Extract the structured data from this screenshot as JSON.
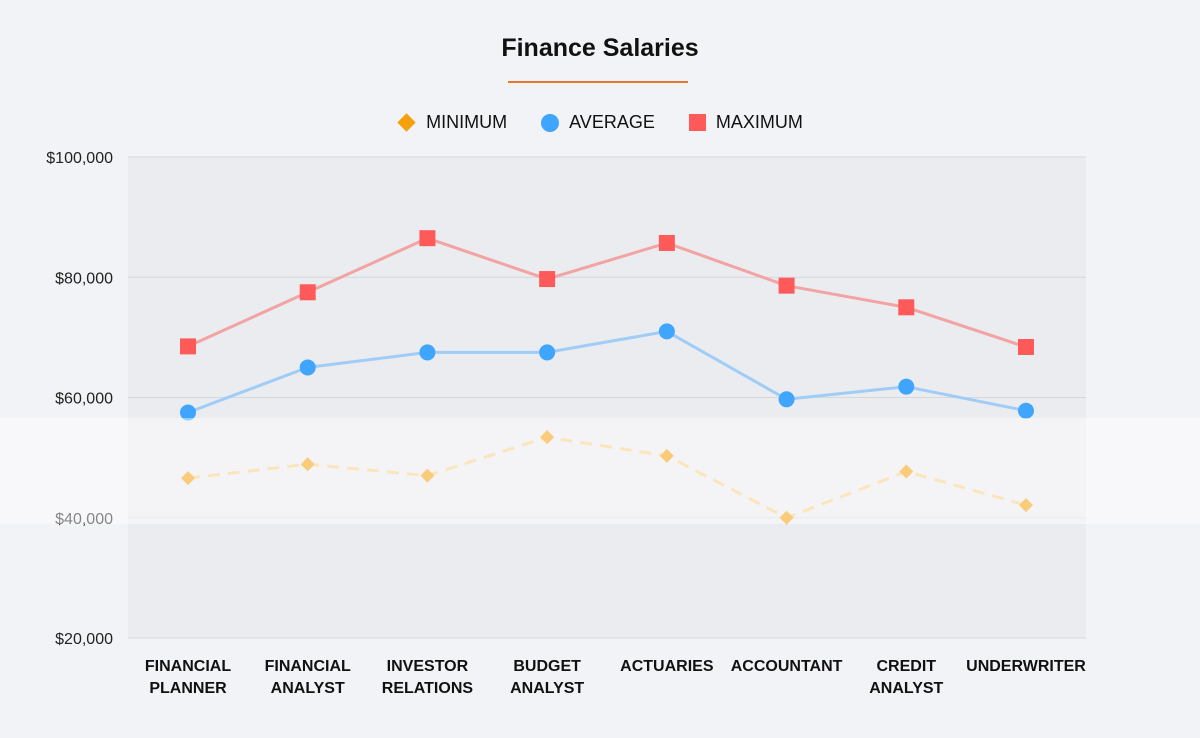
{
  "chart_data": {
    "type": "line",
    "title": "Finance Salaries",
    "xlabel": "",
    "ylabel": "",
    "categories": [
      [
        "FINANCIAL",
        "PLANNER"
      ],
      [
        "FINANCIAL",
        "ANALYST"
      ],
      [
        "INVESTOR",
        "RELATIONS"
      ],
      [
        "BUDGET",
        "ANALYST"
      ],
      [
        "ACTUARIES"
      ],
      [
        "ACCOUNTANT"
      ],
      [
        "CREDIT",
        "ANALYST"
      ],
      [
        "UNDERWRITER"
      ]
    ],
    "ylim": [
      20000,
      100000
    ],
    "yticks": [
      {
        "value": 20000,
        "label": "$20,000"
      },
      {
        "value": 40000,
        "label": "$40,000"
      },
      {
        "value": 60000,
        "label": "$60,000"
      },
      {
        "value": 80000,
        "label": "$80,000"
      },
      {
        "value": 100000,
        "label": "$100,000"
      }
    ],
    "grid": true,
    "legend_position": "top-center",
    "series": [
      {
        "name": "MINIMUM",
        "marker": "diamond",
        "line": "dashed",
        "color": "#f5a00e",
        "line_color": "#f7cf86",
        "values": [
          46600,
          48900,
          47000,
          53400,
          50300,
          40000,
          47700,
          42100
        ]
      },
      {
        "name": "AVERAGE",
        "marker": "circle",
        "line": "solid",
        "color": "#3fa5ff",
        "line_color": "#9fcdf7",
        "values": [
          57500,
          65000,
          67500,
          67500,
          71000,
          59700,
          61800,
          57800
        ]
      },
      {
        "name": "MAXIMUM",
        "marker": "square",
        "line": "solid",
        "color": "#ff5a5a",
        "line_color": "#f2a3a3",
        "values": [
          68500,
          77500,
          86500,
          79700,
          85700,
          78600,
          75000,
          68400
        ]
      }
    ]
  },
  "colors": {
    "title_underline": "#e8762b",
    "plot_background": "#ebecef",
    "grid": "#d6d7db"
  }
}
